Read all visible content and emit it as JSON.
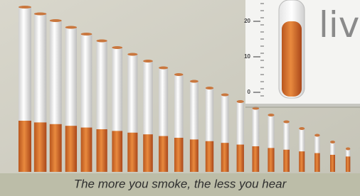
{
  "headline": "liv",
  "gauge": {
    "tick_labels": [
      "20",
      "10",
      "0"
    ]
  },
  "caption": "The more you smoke, the less you hear"
}
